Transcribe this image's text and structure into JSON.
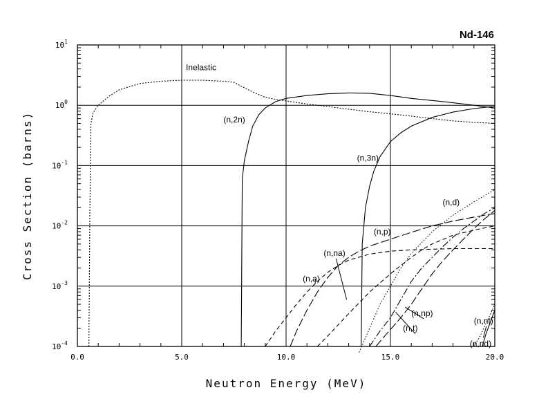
{
  "chart_data": {
    "type": "line",
    "title": "Nd-146",
    "xlabel": "Neutron Energy (MeV)",
    "ylabel": "Cross Section (barns)",
    "xlim": [
      0,
      20
    ],
    "ylim": [
      0.0001,
      10
    ],
    "yscale": "log",
    "grid": true,
    "x_ticks": [
      "0.0",
      "5.0",
      "10.0",
      "15.0",
      "20.0"
    ],
    "y_ticks": [
      {
        "base": "10",
        "exp": "-4"
      },
      {
        "base": "10",
        "exp": "-3"
      },
      {
        "base": "10",
        "exp": "-2"
      },
      {
        "base": "10",
        "exp": "-1"
      },
      {
        "base": "10",
        "exp": "0"
      },
      {
        "base": "10",
        "exp": "1"
      }
    ],
    "series": [
      {
        "name": "Inelastic",
        "dash": "short-dot",
        "x": [
          0.55,
          0.6,
          0.65,
          0.75,
          1.0,
          1.5,
          2.0,
          3.0,
          4.0,
          5.0,
          6.0,
          7.0,
          7.5,
          8.0,
          8.5,
          9.0,
          9.5,
          10.0,
          11.0,
          12.0,
          13.0,
          14.0,
          15.0,
          16.0,
          17.0,
          18.0,
          19.0,
          20.0
        ],
        "y": [
          0.0001,
          0.02,
          0.5,
          0.75,
          1.0,
          1.4,
          1.8,
          2.3,
          2.5,
          2.6,
          2.6,
          2.5,
          2.4,
          1.95,
          1.6,
          1.35,
          1.25,
          1.18,
          1.05,
          0.95,
          0.86,
          0.78,
          0.72,
          0.66,
          0.6,
          0.55,
          0.52,
          0.5
        ]
      },
      {
        "name": "(n,2n)",
        "dash": "solid",
        "x": [
          7.85,
          7.9,
          8.0,
          8.2,
          8.4,
          8.7,
          9.0,
          9.5,
          10.0,
          11.0,
          12.0,
          13.0,
          14.0,
          15.0,
          16.0,
          17.0,
          18.0,
          19.0,
          20.0
        ],
        "y": [
          0.0001,
          0.06,
          0.12,
          0.25,
          0.45,
          0.7,
          0.9,
          1.15,
          1.3,
          1.45,
          1.55,
          1.6,
          1.58,
          1.45,
          1.3,
          1.2,
          1.1,
          1.0,
          0.9
        ]
      },
      {
        "name": "(n,3n)",
        "dash": "solid",
        "x": [
          13.6,
          13.65,
          13.8,
          14.0,
          14.2,
          14.5,
          15.0,
          15.5,
          16.0,
          17.0,
          18.0,
          19.0,
          20.0
        ],
        "y": [
          0.0001,
          0.005,
          0.02,
          0.045,
          0.08,
          0.14,
          0.25,
          0.35,
          0.45,
          0.63,
          0.77,
          0.88,
          0.96
        ]
      },
      {
        "name": "(n,d)",
        "dash": "fine-dot",
        "x": [
          13.5,
          14.0,
          14.5,
          15.0,
          15.5,
          16.0,
          17.0,
          18.0,
          19.0,
          20.0
        ],
        "y": [
          8e-05,
          0.0002,
          0.0005,
          0.001,
          0.002,
          0.0035,
          0.008,
          0.015,
          0.025,
          0.04
        ]
      },
      {
        "name": "(n,p)",
        "dash": "long-dash",
        "x": [
          10.2,
          10.5,
          11.0,
          11.5,
          12.0,
          12.5,
          13.0,
          13.5,
          14.0,
          15.0,
          16.0,
          17.0,
          18.0,
          19.0,
          20.0
        ],
        "y": [
          0.0001,
          0.00018,
          0.0004,
          0.0008,
          0.0014,
          0.0022,
          0.003,
          0.0038,
          0.0046,
          0.006,
          0.0078,
          0.01,
          0.012,
          0.014,
          0.016
        ]
      },
      {
        "name": "(n,a)",
        "dash": "dash",
        "x": [
          9.0,
          9.5,
          10.0,
          10.5,
          11.0,
          11.5,
          12.0,
          12.5,
          13.0,
          14.0,
          15.0,
          16.0,
          17.0,
          18.0,
          19.0,
          20.0
        ],
        "y": [
          0.0001,
          0.00018,
          0.0003,
          0.0005,
          0.0008,
          0.0012,
          0.0017,
          0.0022,
          0.0027,
          0.0034,
          0.0038,
          0.004,
          0.0041,
          0.0042,
          0.0042,
          0.0042
        ]
      },
      {
        "name": "(n,na)",
        "dash": "dash",
        "x": [
          11.5,
          12.0,
          13.0,
          14.0,
          15.0,
          15.5,
          16.0,
          16.5,
          17.0,
          18.0,
          19.0,
          20.0
        ],
        "y": [
          0.0001,
          0.00015,
          0.00035,
          0.0008,
          0.0016,
          0.0022,
          0.003,
          0.004,
          0.005,
          0.007,
          0.0085,
          0.01
        ]
      },
      {
        "name": "(n,np)",
        "dash": "dash-dot",
        "x": [
          14.0,
          14.5,
          15.0,
          15.5,
          16.0,
          16.5,
          17.0,
          17.5,
          18.0,
          18.5,
          19.0,
          19.5,
          20.0
        ],
        "y": [
          0.0001,
          0.00018,
          0.0003,
          0.0006,
          0.0012,
          0.002,
          0.003,
          0.0045,
          0.0065,
          0.009,
          0.012,
          0.016,
          0.02
        ]
      },
      {
        "name": "(n,t)",
        "dash": "long-dash",
        "x": [
          14.3,
          14.8,
          15.5,
          16.0,
          16.5,
          17.0,
          17.5,
          18.0,
          18.5,
          19.0,
          19.5,
          20.0
        ],
        "y": [
          0.0001,
          0.00016,
          0.0003,
          0.0005,
          0.0009,
          0.0016,
          0.0026,
          0.004,
          0.006,
          0.009,
          0.013,
          0.018
        ]
      },
      {
        "name": "(n,nt)",
        "dash": "fine-dot",
        "x": [
          19.0,
          19.3,
          19.6,
          19.8,
          20.0
        ],
        "y": [
          0.0001,
          0.00015,
          0.00025,
          0.00035,
          0.0005
        ]
      },
      {
        "name": "(n,nd)",
        "dash": "solid",
        "x": [
          19.4,
          19.6,
          19.8,
          20.0
        ],
        "y": [
          0.0001,
          0.00017,
          0.00026,
          0.0004
        ]
      }
    ],
    "annotations": [
      {
        "text": "Inelastic",
        "series": "Inelastic",
        "x": 5.2,
        "y": 3.8,
        "lx": null,
        "ly": null
      },
      {
        "text": "(n,2n)",
        "series": "(n,2n)",
        "x": 7.0,
        "y": 0.52,
        "lx": null,
        "ly": null
      },
      {
        "text": "(n,3n)",
        "series": "(n,3n)",
        "x": 13.4,
        "y": 0.12,
        "lx": null,
        "ly": null
      },
      {
        "text": "(n,d)",
        "series": "(n,d)",
        "x": 17.5,
        "y": 0.022,
        "lx": null,
        "ly": null
      },
      {
        "text": "(n,p)",
        "series": "(n,p)",
        "x": 14.2,
        "y": 0.0072,
        "lx": null,
        "ly": null
      },
      {
        "text": "(n,na)",
        "series": "(n,na)",
        "x": 11.8,
        "y": 0.0032,
        "lx": 12.9,
        "ly": 0.0006
      },
      {
        "text": "(n,a)",
        "series": "(n,a)",
        "x": 10.8,
        "y": 0.0012,
        "lx": 11.4,
        "ly": 0.0013
      },
      {
        "text": "(n,np)",
        "series": "(n,np)",
        "x": 16.0,
        "y": 0.00032,
        "lx": 15.7,
        "ly": 0.00045
      },
      {
        "text": "(n,t)",
        "series": "(n,t)",
        "x": 15.6,
        "y": 0.00018,
        "lx": 15.25,
        "ly": 0.00037
      },
      {
        "text": "(n,nt)",
        "series": "(n,nt)",
        "x": 19.0,
        "y": 0.00024,
        "lx": 19.45,
        "ly": 0.00014
      },
      {
        "text": "(n,nd)",
        "series": "(n,nd)",
        "x": 18.8,
        "y": 0.0001,
        "lx": null,
        "ly": null
      }
    ]
  }
}
